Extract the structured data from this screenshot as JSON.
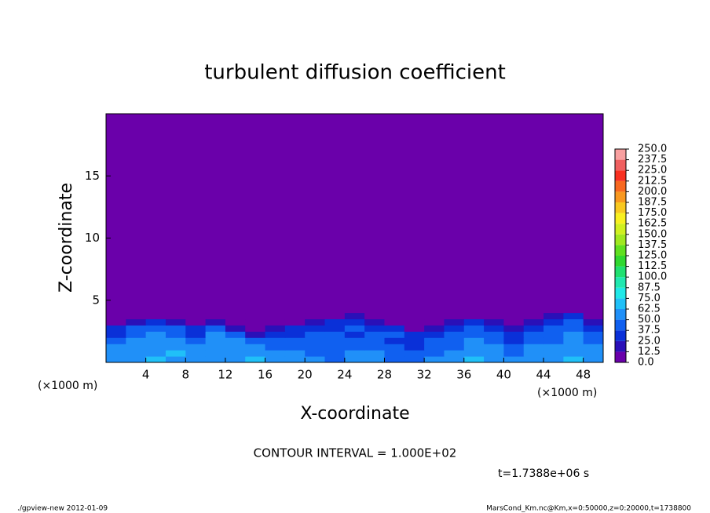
{
  "chart_data": {
    "type": "contour",
    "title": "turbulent diffusion coefficient",
    "xlabel": "X-coordinate",
    "ylabel": "Z-coordinate",
    "x_unit_left": "(×1000 m)",
    "x_unit_right": "(×1000 m)",
    "contour_note": "CONTOUR INTERVAL = 1.000E+02",
    "time_label": "t=1.7388e+06 s",
    "footer_left": "./gpview-new  2012-01-09",
    "footer_right": "MarsCond_Km.nc@Km,x=0:50000,z=0:20000,t=1738800",
    "xlim": [
      0,
      50
    ],
    "ylim": [
      0,
      20
    ],
    "xticks": [
      4,
      8,
      12,
      16,
      20,
      24,
      28,
      32,
      36,
      40,
      44,
      48
    ],
    "yticks": [
      5,
      10,
      15
    ],
    "levels": [
      {
        "value": 0,
        "label": "0.0"
      },
      12.5,
      {
        "value": 25,
        "label": "25.0"
      },
      37.5,
      {
        "value": 50,
        "label": "50.0"
      },
      62.5,
      {
        "value": 75,
        "label": "75.0"
      },
      87.5,
      {
        "value": 100,
        "label": "100.0"
      },
      112.5,
      {
        "value": 125,
        "label": "125.0"
      },
      137.5,
      {
        "value": 150,
        "label": "150.0"
      },
      162.5,
      {
        "value": 175,
        "label": "175.0"
      },
      187.5,
      {
        "value": 200,
        "label": "200.0"
      },
      212.5,
      {
        "value": 225,
        "label": "225.0"
      },
      237.5,
      {
        "value": 250,
        "label": "250.0"
      }
    ],
    "colors": [
      "#6a00aa",
      "#2a10b8",
      "#0a30d8",
      "#1060f0",
      "#2090f8",
      "#20c0f8",
      "#20e8e8",
      "#20e8b0",
      "#20e070",
      "#30d830",
      "#60e020",
      "#a0e820",
      "#d0f020",
      "#f8f020",
      "#f8c820",
      "#f89820",
      "#f86820",
      "#f83020",
      "#f06060",
      "#f8a0a0"
    ],
    "field": {
      "x_edges": [
        0,
        2,
        4,
        6,
        8,
        10,
        12,
        14,
        16,
        18,
        20,
        22,
        24,
        26,
        28,
        30,
        32,
        34,
        36,
        38,
        40,
        42,
        44,
        46,
        48,
        50
      ],
      "z_edges": [
        0,
        0.5,
        1,
        1.5,
        2,
        2.5,
        3,
        3.5,
        4,
        20
      ],
      "values": [
        [
          55,
          60,
          65,
          60,
          55,
          60,
          50,
          65,
          60,
          55,
          50,
          45,
          50,
          55,
          45,
          40,
          50,
          55,
          70,
          55,
          50,
          60,
          55,
          65,
          60
        ],
        [
          60,
          55,
          60,
          65,
          60,
          55,
          55,
          60,
          50,
          50,
          45,
          45,
          50,
          50,
          45,
          40,
          45,
          50,
          60,
          60,
          45,
          55,
          50,
          60,
          55
        ],
        [
          50,
          55,
          60,
          60,
          50,
          60,
          55,
          50,
          45,
          45,
          45,
          40,
          45,
          45,
          40,
          35,
          45,
          45,
          55,
          50,
          40,
          50,
          50,
          55,
          50
        ],
        [
          45,
          50,
          55,
          50,
          45,
          55,
          50,
          40,
          40,
          40,
          40,
          40,
          40,
          45,
          35,
          30,
          40,
          45,
          50,
          45,
          35,
          45,
          45,
          55,
          45
        ],
        [
          30,
          45,
          50,
          45,
          35,
          50,
          40,
          20,
          30,
          35,
          40,
          40,
          35,
          40,
          40,
          25,
          35,
          40,
          45,
          40,
          30,
          40,
          45,
          50,
          40
        ],
        [
          25,
          40,
          45,
          40,
          25,
          45,
          15,
          5,
          15,
          25,
          35,
          35,
          40,
          35,
          30,
          10,
          20,
          35,
          40,
          30,
          20,
          30,
          40,
          45,
          30
        ],
        [
          5,
          20,
          30,
          15,
          5,
          20,
          0,
          0,
          5,
          10,
          20,
          25,
          30,
          15,
          5,
          0,
          5,
          20,
          30,
          15,
          5,
          15,
          30,
          40,
          15
        ],
        [
          0,
          5,
          10,
          5,
          0,
          0,
          0,
          0,
          0,
          0,
          5,
          5,
          15,
          5,
          0,
          0,
          0,
          5,
          10,
          0,
          0,
          5,
          15,
          30,
          5
        ],
        [
          0,
          0,
          0,
          0,
          0,
          0,
          0,
          0,
          0,
          0,
          0,
          0,
          0,
          0,
          0,
          0,
          0,
          0,
          0,
          0,
          0,
          0,
          0,
          0,
          0
        ]
      ]
    }
  }
}
